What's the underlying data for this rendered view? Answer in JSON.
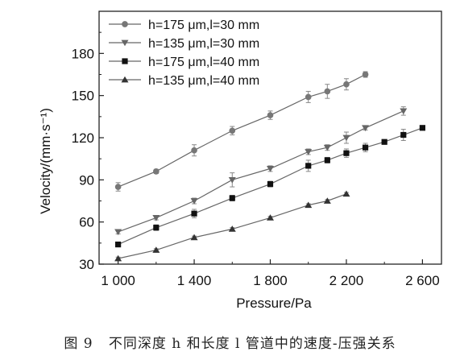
{
  "chart_data": {
    "type": "line",
    "xlabel": "Pressure/Pa",
    "ylabel": "Velocity/(mm·s⁻¹)",
    "xlim": [
      900,
      2700
    ],
    "ylim": [
      30,
      210
    ],
    "xticks": [
      1000,
      1400,
      1800,
      2200,
      2600
    ],
    "xtick_labels": [
      "1 000",
      "1 400",
      "1 800",
      "2 200",
      "2 600"
    ],
    "yticks": [
      30,
      60,
      90,
      120,
      150,
      180
    ],
    "ytick_labels": [
      "30",
      "60",
      "90",
      "120",
      "150",
      "180"
    ],
    "grid": false,
    "legend_position": "top-left",
    "series": [
      {
        "name": "h=175 μm,l=30 mm",
        "marker": "circle",
        "color": "#777777",
        "x": [
          1000,
          1200,
          1400,
          1600,
          1800,
          2000,
          2100,
          2200,
          2300
        ],
        "y": [
          85,
          96,
          111,
          125,
          136,
          149,
          153,
          158,
          165
        ],
        "err": [
          3,
          1.5,
          4,
          3,
          3,
          4,
          5,
          4,
          2
        ]
      },
      {
        "name": "h=135 μm,l=30 mm",
        "marker": "triangle-down",
        "color": "#666666",
        "x": [
          1000,
          1200,
          1400,
          1600,
          1800,
          2000,
          2100,
          2200,
          2300,
          2500
        ],
        "y": [
          53,
          63,
          75,
          90,
          98,
          110,
          113,
          120,
          127,
          139
        ],
        "err": [
          1.5,
          1.5,
          2,
          5,
          2,
          2,
          2,
          4,
          1.5,
          3
        ]
      },
      {
        "name": "h=175 μm,l=40 mm",
        "marker": "square",
        "color": "#111111",
        "x": [
          1000,
          1200,
          1400,
          1600,
          1800,
          2000,
          2100,
          2200,
          2300,
          2400,
          2500,
          2600
        ],
        "y": [
          44,
          56,
          66,
          77,
          87,
          100,
          104,
          109,
          113,
          117,
          122,
          127
        ],
        "err": [
          1.5,
          2,
          3,
          2,
          2,
          4,
          2,
          3,
          3,
          1.5,
          4,
          1.5
        ]
      },
      {
        "name": "h=135 μm,l=40 mm",
        "marker": "triangle-up",
        "color": "#333333",
        "x": [
          1000,
          1200,
          1400,
          1600,
          1800,
          2000,
          2100,
          2200
        ],
        "y": [
          34,
          40,
          49,
          55,
          63,
          72,
          75,
          80
        ],
        "err": [
          1,
          1,
          1,
          1,
          1,
          1,
          1,
          1
        ]
      }
    ]
  },
  "caption": {
    "label": "图 9",
    "text": "不同深度 h 和长度 l 管道中的速度-压强关系"
  }
}
